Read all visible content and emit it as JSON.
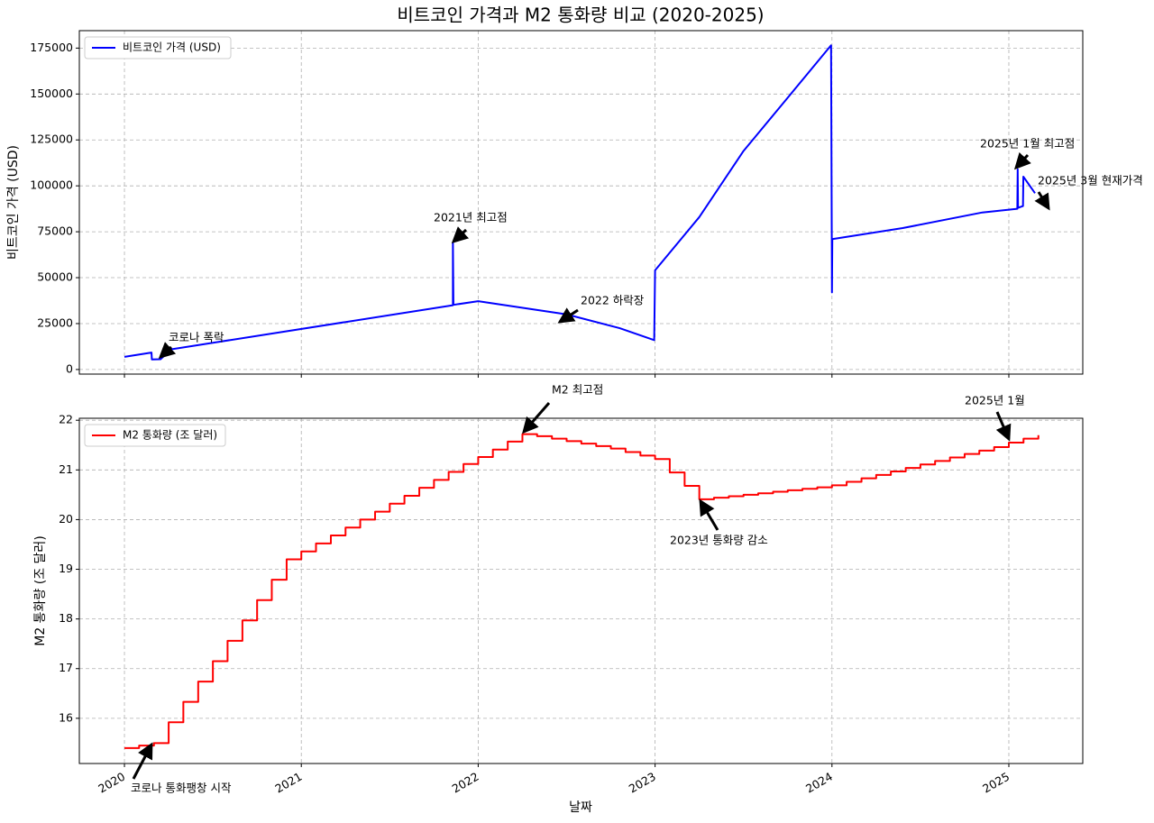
{
  "chart_data": [
    {
      "type": "line",
      "title": "비트코인 가격과 M2 통화량 비교 (2020-2025)",
      "y_label": "비트코인 가격 (USD)",
      "label_color": "#0000ff",
      "x": [
        2020.0,
        2020.153,
        2020.155,
        2020.204,
        2020.265,
        2021.857,
        2021.857,
        2021.86,
        2022.0,
        2022.5,
        2022.8,
        2022.995,
        2023.0,
        2023.25,
        2023.5,
        2023.75,
        2023.995,
        2024.0,
        2024.002,
        2024.4,
        2024.85,
        2025.048,
        2025.05,
        2025.052,
        2025.08,
        2025.082,
        2025.148
      ],
      "series": [
        {
          "name": "비트코인 가격 (USD)",
          "color": "#0000ff",
          "values": [
            6900,
            9200,
            5500,
            5600,
            11000,
            35000,
            69000,
            35200,
            37200,
            30000,
            22500,
            16000,
            54000,
            83000,
            119000,
            148000,
            176500,
            42000,
            71000,
            77000,
            85500,
            87500,
            109000,
            88000,
            89000,
            105000,
            96000
          ]
        }
      ],
      "xlim": [
        2019.745,
        2025.418
      ],
      "xticks": [
        2020,
        2021,
        2022,
        2023,
        2024,
        2025
      ],
      "ylim": [
        -2500,
        184500
      ],
      "yticks": [
        0,
        25000,
        50000,
        75000,
        100000,
        125000,
        150000,
        175000
      ],
      "grid": true,
      "legend": "upper left",
      "drawstyle": "default",
      "annotations": [
        "코로나 폭락",
        "2021년 최고점",
        "2022 하락장",
        "2025년 1월 최고점",
        "2025년 3월 현재가격"
      ]
    },
    {
      "type": "line",
      "x_label": "날짜",
      "y_label": "M2 통화량 (조 달러)",
      "label_color": "#ff0000",
      "x": [
        2020.0,
        2020.083,
        2020.167,
        2020.25,
        2020.333,
        2020.417,
        2020.5,
        2020.583,
        2020.667,
        2020.75,
        2020.833,
        2020.917,
        2021.0,
        2021.083,
        2021.167,
        2021.25,
        2021.333,
        2021.417,
        2021.5,
        2021.583,
        2021.667,
        2021.75,
        2021.833,
        2021.917,
        2022.0,
        2022.083,
        2022.167,
        2022.25,
        2022.333,
        2022.417,
        2022.5,
        2022.583,
        2022.667,
        2022.75,
        2022.833,
        2022.917,
        2023.0,
        2023.083,
        2023.167,
        2023.25,
        2023.333,
        2023.417,
        2023.5,
        2023.583,
        2023.667,
        2023.75,
        2023.833,
        2023.917,
        2024.0,
        2024.083,
        2024.167,
        2024.25,
        2024.333,
        2024.417,
        2024.5,
        2024.583,
        2024.667,
        2024.75,
        2024.833,
        2024.917,
        2025.0,
        2025.083,
        2025.167
      ],
      "series": [
        {
          "name": "M2 통화량 (조 달러)",
          "color": "#ff0000",
          "values": [
            15.4,
            15.45,
            15.5,
            15.92,
            16.33,
            16.74,
            17.15,
            17.56,
            17.97,
            18.38,
            18.79,
            19.2,
            19.36,
            19.52,
            19.68,
            19.84,
            20.0,
            20.16,
            20.32,
            20.48,
            20.64,
            20.8,
            20.96,
            21.12,
            21.26,
            21.41,
            21.57,
            21.72,
            21.68,
            21.63,
            21.58,
            21.53,
            21.48,
            21.43,
            21.36,
            21.29,
            21.22,
            20.95,
            20.68,
            20.41,
            20.44,
            20.47,
            20.5,
            20.53,
            20.56,
            20.59,
            20.62,
            20.65,
            20.69,
            20.76,
            20.83,
            20.9,
            20.97,
            21.04,
            21.11,
            21.18,
            21.25,
            21.32,
            21.39,
            21.46,
            21.55,
            21.63,
            21.7
          ]
        }
      ],
      "xlim": [
        2019.745,
        2025.418
      ],
      "xticks": [
        2020,
        2021,
        2022,
        2023,
        2024,
        2025
      ],
      "ylim": [
        15.09,
        22.04
      ],
      "yticks": [
        16,
        17,
        18,
        19,
        20,
        21,
        22
      ],
      "grid": true,
      "legend": "upper left",
      "drawstyle": "steps-post",
      "annotations": [
        "M2 최고점",
        "2023년 통화량 감소",
        "2025년 1월",
        "코로나 통화팽창 시작"
      ]
    }
  ]
}
